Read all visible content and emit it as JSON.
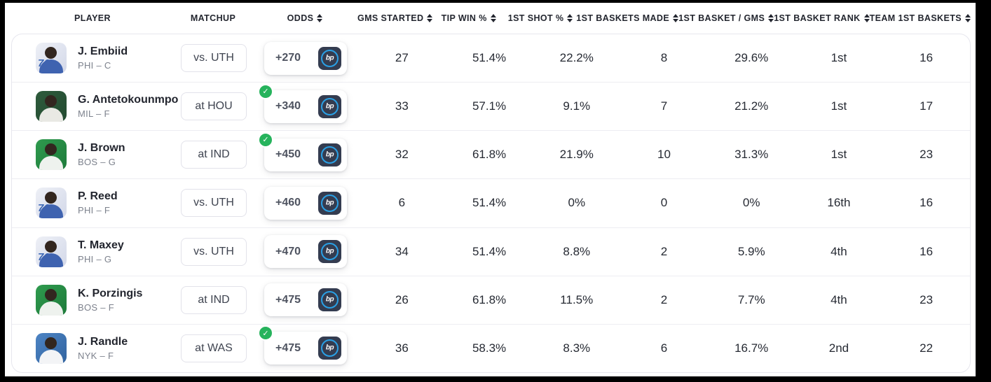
{
  "colors": {
    "check_green": "#26b35c",
    "logo_bg_navy": "#343c50",
    "logo_ring_blue": "#2aa0e5",
    "header_text": "#23262f",
    "row_border": "#ededf2",
    "team_avatar_bg": {
      "PHI": "#dfe3ef",
      "MIL": "#2e5b3c",
      "BOS": "#2f9b4e",
      "NYK": "#4d84c4"
    }
  },
  "icons": {
    "sort": "sort-arrows",
    "best_odds_check": "check",
    "sportsbook_logo_text": "bp"
  },
  "table": {
    "columns": [
      {
        "label": "PLAYER",
        "sortable": false
      },
      {
        "label": "MATCHUP",
        "sortable": false
      },
      {
        "label": "ODDS",
        "sortable": true
      },
      {
        "label": "GMS STARTED",
        "sortable": true
      },
      {
        "label": "TIP WIN %",
        "sortable": true
      },
      {
        "label": "1ST SHOT %",
        "sortable": true
      },
      {
        "label": "1ST BASKETS MADE",
        "sortable": true
      },
      {
        "label": "1ST BASKET / GMS",
        "sortable": true
      },
      {
        "label": "1ST BASKET RANK",
        "sortable": true
      },
      {
        "label": "TEAM 1ST BASKETS",
        "sortable": true
      }
    ],
    "rows": [
      {
        "player_name": "J. Embiid",
        "team_pos": "PHI – C",
        "team": "PHI",
        "matchup": "vs. UTH",
        "odds": "+270",
        "best_odds": false,
        "gms_started": "27",
        "tip_win_pct": "51.4%",
        "first_shot_pct": "22.2%",
        "first_baskets_made": "8",
        "first_basket_per_gms": "29.6%",
        "first_basket_rank": "1st",
        "team_first_baskets": "16"
      },
      {
        "player_name": "G. Antetokounmpo",
        "team_pos": "MIL – F",
        "team": "MIL",
        "matchup": "at HOU",
        "odds": "+340",
        "best_odds": true,
        "gms_started": "33",
        "tip_win_pct": "57.1%",
        "first_shot_pct": "9.1%",
        "first_baskets_made": "7",
        "first_basket_per_gms": "21.2%",
        "first_basket_rank": "1st",
        "team_first_baskets": "17"
      },
      {
        "player_name": "J. Brown",
        "team_pos": "BOS – G",
        "team": "BOS",
        "matchup": "at IND",
        "odds": "+450",
        "best_odds": true,
        "gms_started": "32",
        "tip_win_pct": "61.8%",
        "first_shot_pct": "21.9%",
        "first_baskets_made": "10",
        "first_basket_per_gms": "31.3%",
        "first_basket_rank": "1st",
        "team_first_baskets": "23"
      },
      {
        "player_name": "P. Reed",
        "team_pos": "PHI – F",
        "team": "PHI",
        "matchup": "vs. UTH",
        "odds": "+460",
        "best_odds": false,
        "gms_started": "6",
        "tip_win_pct": "51.4%",
        "first_shot_pct": "0%",
        "first_baskets_made": "0",
        "first_basket_per_gms": "0%",
        "first_basket_rank": "16th",
        "team_first_baskets": "16"
      },
      {
        "player_name": "T. Maxey",
        "team_pos": "PHI – G",
        "team": "PHI",
        "matchup": "vs. UTH",
        "odds": "+470",
        "best_odds": false,
        "gms_started": "34",
        "tip_win_pct": "51.4%",
        "first_shot_pct": "8.8%",
        "first_baskets_made": "2",
        "first_basket_per_gms": "5.9%",
        "first_basket_rank": "4th",
        "team_first_baskets": "16"
      },
      {
        "player_name": "K. Porzingis",
        "team_pos": "BOS – F",
        "team": "BOS",
        "matchup": "at IND",
        "odds": "+475",
        "best_odds": false,
        "gms_started": "26",
        "tip_win_pct": "61.8%",
        "first_shot_pct": "11.5%",
        "first_baskets_made": "2",
        "first_basket_per_gms": "7.7%",
        "first_basket_rank": "4th",
        "team_first_baskets": "23"
      },
      {
        "player_name": "J. Randle",
        "team_pos": "NYK – F",
        "team": "NYK",
        "matchup": "at WAS",
        "odds": "+475",
        "best_odds": true,
        "gms_started": "36",
        "tip_win_pct": "58.3%",
        "first_shot_pct": "8.3%",
        "first_baskets_made": "6",
        "first_basket_per_gms": "16.7%",
        "first_basket_rank": "2nd",
        "team_first_baskets": "22"
      }
    ]
  }
}
